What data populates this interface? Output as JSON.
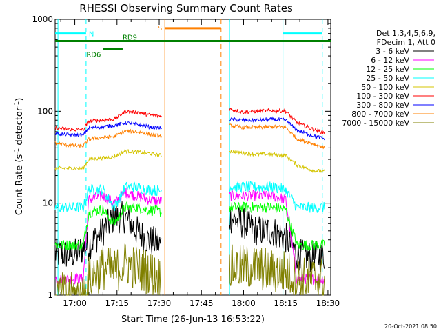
{
  "chart_data": {
    "type": "line",
    "title": "RHESSI Observing Summary Count Rates",
    "xlabel": "Start Time (26-Jun-13 16:53:22)",
    "ylabel_parts": [
      "Count Rate (s",
      "-1",
      " detector",
      "-1",
      ")"
    ],
    "ylog": true,
    "ylim": [
      1,
      1000
    ],
    "yticks": [
      {
        "value": 1,
        "label": "1"
      },
      {
        "value": 10,
        "label": "10"
      },
      {
        "value": 100,
        "label": "100"
      },
      {
        "value": 1000,
        "label": "1000"
      }
    ],
    "xlim": [
      "16:53",
      "18:31"
    ],
    "xticks": [
      "17:00",
      "17:15",
      "17:30",
      "17:45",
      "18:00",
      "18:15",
      "18:30"
    ],
    "legend": {
      "header": [
        "Det 1,3,4,5,6,9,",
        "FDecim 1, Att 0"
      ],
      "placement": "right"
    },
    "data_gap": [
      "17:31",
      "17:55"
    ],
    "series": [
      {
        "name": "3 - 6 keV",
        "color": "#000000",
        "points": [
          [
            "16:53",
            2.8
          ],
          [
            "17:00",
            2.8
          ],
          [
            "17:05",
            3.5
          ],
          [
            "17:10",
            5
          ],
          [
            "17:14",
            7
          ],
          [
            "17:18",
            7
          ],
          [
            "17:22",
            5
          ],
          [
            "17:26",
            4
          ],
          [
            "17:31",
            3.5
          ],
          [
            "17:55",
            7
          ],
          [
            "18:00",
            6
          ],
          [
            "18:05",
            5
          ],
          [
            "18:10",
            5
          ],
          [
            "18:15",
            4.2
          ],
          [
            "18:19",
            2.8
          ],
          [
            "18:24",
            2.6
          ],
          [
            "18:29",
            2.7
          ]
        ]
      },
      {
        "name": "6 - 12 keV",
        "color": "#ff00ff",
        "points": [
          [
            "16:53",
            1.5
          ],
          [
            "17:03",
            1.5
          ],
          [
            "17:05",
            11
          ],
          [
            "17:10",
            12
          ],
          [
            "17:14",
            10
          ],
          [
            "17:18",
            13
          ],
          [
            "17:22",
            12
          ],
          [
            "17:26",
            11
          ],
          [
            "17:31",
            10.5
          ],
          [
            "17:55",
            12
          ],
          [
            "18:00",
            12
          ],
          [
            "18:05",
            12
          ],
          [
            "18:10",
            12
          ],
          [
            "18:15",
            11
          ],
          [
            "18:19",
            1.5
          ],
          [
            "18:29",
            1.5
          ]
        ]
      },
      {
        "name": "12 - 25 keV",
        "color": "#00ff00",
        "points": [
          [
            "16:53",
            3.5
          ],
          [
            "17:03",
            3.5
          ],
          [
            "17:05",
            8
          ],
          [
            "17:10",
            8.5
          ],
          [
            "17:14",
            6
          ],
          [
            "17:18",
            9
          ],
          [
            "17:22",
            9
          ],
          [
            "17:26",
            8.5
          ],
          [
            "17:31",
            8
          ],
          [
            "17:55",
            9
          ],
          [
            "18:00",
            9
          ],
          [
            "18:05",
            9
          ],
          [
            "18:10",
            9
          ],
          [
            "18:15",
            8.5
          ],
          [
            "18:19",
            3.5
          ],
          [
            "18:29",
            3.5
          ]
        ]
      },
      {
        "name": "25 - 50 keV",
        "color": "#00ffff",
        "points": [
          [
            "16:53",
            9
          ],
          [
            "17:03",
            9
          ],
          [
            "17:05",
            14
          ],
          [
            "17:10",
            14
          ],
          [
            "17:14",
            9
          ],
          [
            "17:18",
            15
          ],
          [
            "17:22",
            15
          ],
          [
            "17:26",
            14
          ],
          [
            "17:31",
            13.5
          ],
          [
            "17:55",
            15
          ],
          [
            "18:00",
            15
          ],
          [
            "18:05",
            15
          ],
          [
            "18:10",
            15
          ],
          [
            "18:15",
            14
          ],
          [
            "18:19",
            9
          ],
          [
            "18:29",
            9
          ]
        ]
      },
      {
        "name": "50 - 100 keV",
        "color": "#d4c400",
        "points": [
          [
            "16:53",
            24
          ],
          [
            "17:03",
            24
          ],
          [
            "17:05",
            30
          ],
          [
            "17:10",
            31
          ],
          [
            "17:14",
            32
          ],
          [
            "17:18",
            37
          ],
          [
            "17:22",
            36
          ],
          [
            "17:26",
            35
          ],
          [
            "17:31",
            33
          ],
          [
            "17:55",
            37
          ],
          [
            "18:00",
            35
          ],
          [
            "18:05",
            34
          ],
          [
            "18:10",
            34
          ],
          [
            "18:15",
            33
          ],
          [
            "18:19",
            26
          ],
          [
            "18:24",
            23
          ],
          [
            "18:29",
            22
          ]
        ]
      },
      {
        "name": "100 - 300 keV",
        "color": "#ff0000",
        "points": [
          [
            "16:53",
            66
          ],
          [
            "17:00",
            63
          ],
          [
            "17:03",
            63
          ],
          [
            "17:05",
            78
          ],
          [
            "17:10",
            80
          ],
          [
            "17:14",
            82
          ],
          [
            "17:18",
            100
          ],
          [
            "17:22",
            98
          ],
          [
            "17:26",
            92
          ],
          [
            "17:31",
            88
          ],
          [
            "17:55",
            106
          ],
          [
            "18:00",
            98
          ],
          [
            "18:05",
            100
          ],
          [
            "18:10",
            102
          ],
          [
            "18:15",
            100
          ],
          [
            "18:19",
            75
          ],
          [
            "18:24",
            65
          ],
          [
            "18:29",
            58
          ]
        ]
      },
      {
        "name": "300 - 800 keV",
        "color": "#0000ff",
        "points": [
          [
            "16:53",
            57
          ],
          [
            "17:00",
            55
          ],
          [
            "17:03",
            55
          ],
          [
            "17:05",
            66
          ],
          [
            "17:10",
            68
          ],
          [
            "17:14",
            70
          ],
          [
            "17:18",
            75
          ],
          [
            "17:22",
            72
          ],
          [
            "17:26",
            68
          ],
          [
            "17:31",
            65
          ],
          [
            "17:55",
            82
          ],
          [
            "18:00",
            80
          ],
          [
            "18:05",
            80
          ],
          [
            "18:10",
            82
          ],
          [
            "18:15",
            80
          ],
          [
            "18:19",
            62
          ],
          [
            "18:24",
            55
          ],
          [
            "18:29",
            50
          ]
        ]
      },
      {
        "name": "800 - 7000 keV",
        "color": "#ff8000",
        "points": [
          [
            "16:53",
            45
          ],
          [
            "17:00",
            42
          ],
          [
            "17:03",
            42
          ],
          [
            "17:05",
            50
          ],
          [
            "17:10",
            52
          ],
          [
            "17:14",
            53
          ],
          [
            "17:18",
            61
          ],
          [
            "17:22",
            60
          ],
          [
            "17:26",
            57
          ],
          [
            "17:31",
            53
          ],
          [
            "17:55",
            70
          ],
          [
            "18:00",
            67
          ],
          [
            "18:05",
            67
          ],
          [
            "18:10",
            68
          ],
          [
            "18:15",
            67
          ],
          [
            "18:19",
            50
          ],
          [
            "18:24",
            45
          ],
          [
            "18:29",
            40
          ]
        ]
      },
      {
        "name": "7000 - 15000 keV",
        "color": "#808000",
        "points": [
          [
            "16:53",
            1
          ],
          [
            "17:03",
            1
          ],
          [
            "17:05",
            1.5
          ],
          [
            "17:10",
            2
          ],
          [
            "17:14",
            1.8
          ],
          [
            "17:18",
            2.2
          ],
          [
            "17:22",
            2
          ],
          [
            "17:26",
            1.8
          ],
          [
            "17:31",
            1.5
          ],
          [
            "17:55",
            2
          ],
          [
            "18:00",
            2
          ],
          [
            "18:05",
            2
          ],
          [
            "18:10",
            1.8
          ],
          [
            "18:15",
            1.8
          ],
          [
            "18:19",
            1.5
          ],
          [
            "18:29",
            1.5
          ]
        ]
      }
    ],
    "annotations": [
      {
        "label": "N",
        "color": "#00ffff",
        "segments": [
          [
            "16:53",
            "17:04"
          ],
          [
            "18:14",
            "18:28"
          ]
        ],
        "level": 700
      },
      {
        "label": "S",
        "color": "#ff8000",
        "segments": [
          [
            "17:32",
            "17:52"
          ]
        ],
        "level": 800
      },
      {
        "label": "RD9",
        "color": "#008000",
        "segments": [
          [
            "16:53",
            "18:31"
          ]
        ],
        "level": 580
      },
      {
        "label": "RD6",
        "color": "#008000",
        "segments": [
          [
            "17:10",
            "17:17"
          ]
        ],
        "level": 480
      }
    ],
    "vertical_markers": [
      {
        "time": "16:54",
        "color": "#00ffff",
        "style": "solid"
      },
      {
        "time": "17:04",
        "color": "#00ffff",
        "style": "dashed"
      },
      {
        "time": "17:32",
        "color": "#ff8000",
        "style": "solid"
      },
      {
        "time": "17:52",
        "color": "#ff8000",
        "style": "dashed"
      },
      {
        "time": "17:55",
        "color": "#00ffff",
        "style": "solid"
      },
      {
        "time": "18:14",
        "color": "#00ffff",
        "style": "solid"
      },
      {
        "time": "18:28",
        "color": "#00ffff",
        "style": "dashed"
      }
    ],
    "footer_stamp": "20-Oct-2021 08:50"
  }
}
